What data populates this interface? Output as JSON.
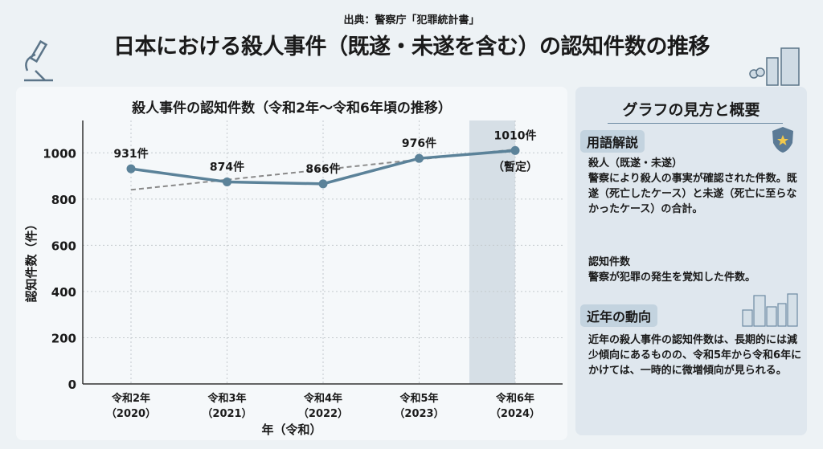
{
  "header": {
    "source": "出典：警察庁「犯罪統計書」",
    "title": "日本における殺人事件（既遂・未遂を含む）の認知件数の推移"
  },
  "chart_data": {
    "type": "line",
    "title": "殺人事件の認知件数（令和2年〜令和6年頃の推移）",
    "xlabel": "年（令和）",
    "ylabel": "認知件数（件）",
    "categories": [
      "令和2年\n(2020)",
      "令和3年\n(2021)",
      "令和4年\n(2022)",
      "令和5年\n(2023)",
      "令和6年\n(2024)"
    ],
    "category_lines": [
      [
        "令和2年",
        "（2020）"
      ],
      [
        "令和3年",
        "（2021）"
      ],
      [
        "令和4年",
        "（2022）"
      ],
      [
        "令和5年",
        "（2023）"
      ],
      [
        "令和6年",
        "（2024）"
      ]
    ],
    "values": [
      931,
      874,
      866,
      976,
      1010
    ],
    "data_labels": [
      "931件",
      "874件",
      "866件",
      "976件",
      "1010件"
    ],
    "provisional_note": "（暫定）",
    "trend_line": [
      840,
      1015
    ],
    "ylim": [
      0,
      1140
    ],
    "yticks": [
      0,
      200,
      400,
      600,
      800,
      1000
    ],
    "grid": true,
    "highlighted_category": "令和6年\n(2024)",
    "colors": {
      "line": "#5b8299",
      "trend": "#8a8a8a",
      "highlight": "#d6dfe6"
    }
  },
  "sidebar": {
    "title": "グラフの見方と概要",
    "terms_heading": "用語解説",
    "term1_name": "殺人（既遂・未遂）",
    "term1_desc": "警察により殺人の事実が確認された件数。既遂（死亡したケース）と未遂（死亡に至らなかったケース）の合計。",
    "term2_name": "認知件数",
    "term2_desc": "警察が犯罪の発生を覚知した件数。",
    "trend_heading": "近年の動向",
    "trend_desc": "近年の殺人事件の認知件数は、長期的には減少傾向にあるものの、令和5年から令和6年にかけては、一時的に微増傾向が見られる。"
  }
}
